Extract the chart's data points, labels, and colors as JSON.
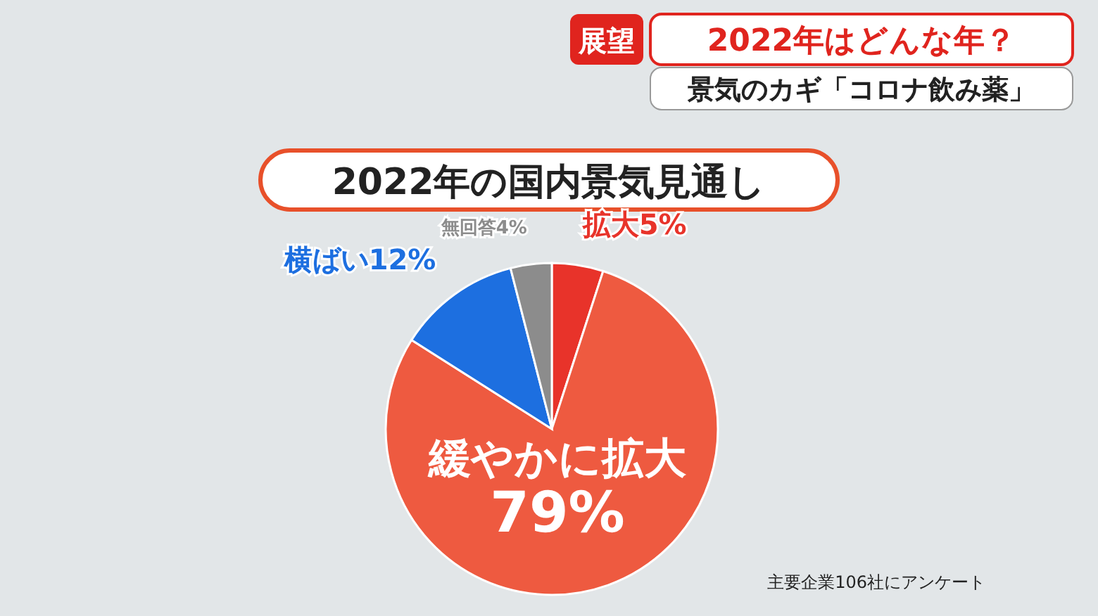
{
  "chart_data": {
    "type": "pie",
    "title": "2022年の国内景気見通し",
    "categories": [
      "拡大",
      "緩やかに拡大",
      "横ばい",
      "無回答"
    ],
    "values": [
      5,
      79,
      12,
      4
    ],
    "value_labels": [
      "5%",
      "79%",
      "12%",
      "4%"
    ],
    "colors": [
      "#e8332a",
      "#ee5a40",
      "#1d6fe0",
      "#8c8c8c"
    ],
    "annotations": [
      "展望",
      "2022年はどんな年？",
      "景気のカギ「コロナ飲み薬」",
      "主要企業106社にアンケート"
    ]
  }
}
